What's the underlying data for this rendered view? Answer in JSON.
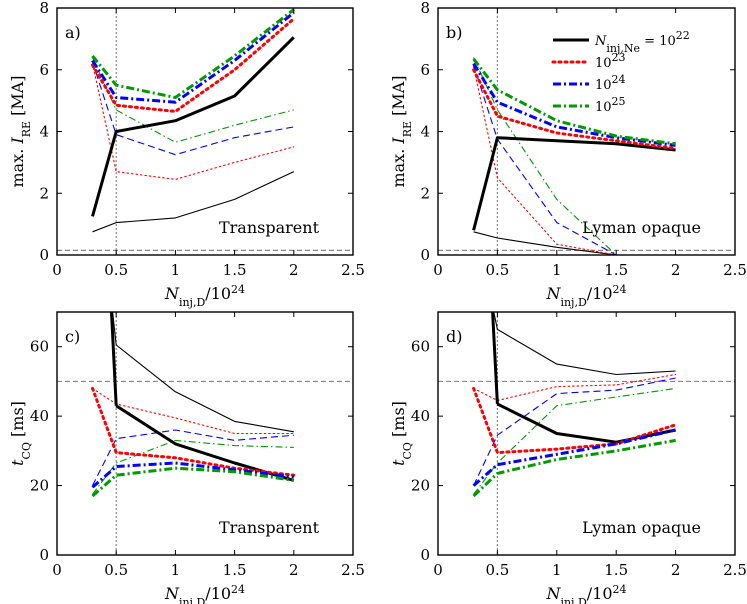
{
  "chart_data": [
    {
      "panel": "a)",
      "type": "line",
      "annotation": "Transparent",
      "xlabel": "N_inj,D/10^24",
      "ylabel": "max. I_RE [MA]",
      "xlim": [
        0,
        2.5
      ],
      "ylim": [
        0,
        8
      ],
      "xticks": [
        0,
        0.5,
        1,
        1.5,
        2,
        2.5
      ],
      "xtick_labels": [
        "0",
        "0.5",
        "1",
        "1.5",
        "2",
        "2.5"
      ],
      "yticks": [
        0,
        2,
        4,
        6,
        8
      ],
      "ytick_labels": [
        "0",
        "2",
        "4",
        "6",
        "8"
      ],
      "vline_x": 0.5,
      "hline_y": 0.15,
      "x": [
        0.3,
        0.5,
        1,
        1.5,
        2
      ],
      "series": [
        {
          "name": "10^22 thick",
          "color": "#000000",
          "style": "solid",
          "weight": "thick",
          "values": [
            1.25,
            4.0,
            4.35,
            5.15,
            7.05
          ]
        },
        {
          "name": "10^23 thick",
          "color": "#ff0000",
          "style": "dotted",
          "weight": "thick",
          "values": [
            6.15,
            4.85,
            4.65,
            6.0,
            7.65
          ]
        },
        {
          "name": "10^24 thick",
          "color": "#0000ff",
          "style": "dashdot",
          "weight": "thick",
          "values": [
            6.3,
            5.1,
            4.95,
            6.3,
            7.85
          ]
        },
        {
          "name": "10^25 thick",
          "color": "#009900",
          "style": "dashdot",
          "weight": "thick",
          "values": [
            6.45,
            5.5,
            5.1,
            6.45,
            7.95
          ]
        },
        {
          "name": "10^22 thin",
          "color": "#000000",
          "style": "solid",
          "weight": "thin",
          "values": [
            0.75,
            1.05,
            1.2,
            1.8,
            2.7
          ]
        },
        {
          "name": "10^23 thin",
          "color": "#ff0000",
          "style": "dotted",
          "weight": "thin",
          "values": [
            6.2,
            2.7,
            2.45,
            3.0,
            3.5
          ]
        },
        {
          "name": "10^24 thin",
          "color": "#0000ff",
          "style": "dashed",
          "weight": "thin",
          "values": [
            6.25,
            3.9,
            3.25,
            3.8,
            4.15
          ]
        },
        {
          "name": "10^25 thin",
          "color": "#009900",
          "style": "dashdot",
          "weight": "thin",
          "values": [
            6.4,
            4.7,
            3.65,
            4.2,
            4.7
          ]
        }
      ]
    },
    {
      "panel": "b)",
      "type": "line",
      "annotation": "Lyman opaque",
      "xlabel": "N_inj,D/10^24",
      "ylabel": "max. I_RE [MA]",
      "xlim": [
        0,
        2.5
      ],
      "ylim": [
        0,
        8
      ],
      "xticks": [
        0,
        0.5,
        1,
        1.5,
        2,
        2.5
      ],
      "xtick_labels": [
        "0",
        "0.5",
        "1",
        "1.5",
        "2",
        "2.5"
      ],
      "yticks": [
        0,
        2,
        4,
        6,
        8
      ],
      "ytick_labels": [
        "0",
        "2",
        "4",
        "6",
        "8"
      ],
      "vline_x": 0.5,
      "hline_y": 0.15,
      "x": [
        0.3,
        0.5,
        1,
        1.5,
        2
      ],
      "series": [
        {
          "name": "10^22 thick",
          "color": "#000000",
          "style": "solid",
          "weight": "thick",
          "values": [
            0.8,
            3.8,
            3.7,
            3.6,
            3.4
          ]
        },
        {
          "name": "10^23 thick",
          "color": "#ff0000",
          "style": "dotted",
          "weight": "thick",
          "values": [
            6.0,
            4.5,
            3.95,
            3.7,
            3.45
          ]
        },
        {
          "name": "10^24 thick",
          "color": "#0000ff",
          "style": "dashdot",
          "weight": "thick",
          "values": [
            6.2,
            4.95,
            4.15,
            3.8,
            3.55
          ]
        },
        {
          "name": "10^25 thick",
          "color": "#009900",
          "style": "dashdot",
          "weight": "thick",
          "values": [
            6.35,
            5.35,
            4.35,
            3.85,
            3.6
          ]
        },
        {
          "name": "10^22 thin",
          "color": "#000000",
          "style": "solid",
          "weight": "thin",
          "values": [
            0.75,
            0.55,
            0.25,
            0.0,
            0.0
          ]
        },
        {
          "name": "10^23 thin",
          "color": "#ff0000",
          "style": "dotted",
          "weight": "thin",
          "values": [
            6.1,
            2.5,
            0.35,
            0.0,
            0.0
          ]
        },
        {
          "name": "10^24 thin",
          "color": "#0000ff",
          "style": "dashed",
          "weight": "thin",
          "values": [
            6.15,
            3.75,
            1.05,
            0.0,
            0.0
          ]
        },
        {
          "name": "10^25 thin",
          "color": "#009900",
          "style": "dashdot",
          "weight": "thin",
          "values": [
            6.4,
            4.7,
            1.8,
            0.0,
            0.0
          ]
        }
      ],
      "legend": {
        "placement": "top-right",
        "entries": [
          {
            "label": "N_inj,Ne = 10^22",
            "color": "#000000",
            "style": "solid"
          },
          {
            "label": "10^23",
            "color": "#ff0000",
            "style": "dotted"
          },
          {
            "label": "10^24",
            "color": "#0000ff",
            "style": "dashdot"
          },
          {
            "label": "10^25",
            "color": "#009900",
            "style": "dashdot"
          }
        ]
      }
    },
    {
      "panel": "c)",
      "type": "line",
      "annotation": "Transparent",
      "xlabel": "N_inj,D/10^24",
      "ylabel": "t_CQ [ms]",
      "xlim": [
        0,
        2.5
      ],
      "ylim": [
        0,
        70
      ],
      "xticks": [
        0,
        0.5,
        1,
        1.5,
        2,
        2.5
      ],
      "xtick_labels": [
        "0",
        "0.5",
        "1",
        "1.5",
        "2",
        "2.5"
      ],
      "yticks": [
        0,
        20,
        40,
        60
      ],
      "ytick_labels": [
        "0",
        "20",
        "40",
        "60"
      ],
      "vline_x": 0.5,
      "hline_y": 50,
      "x": [
        0.3,
        0.5,
        1,
        1.5,
        2
      ],
      "series": [
        {
          "name": "10^22 thick",
          "color": "#000000",
          "style": "solid",
          "weight": "thick",
          "values": [
            null,
            43,
            32,
            26.5,
            21.5
          ]
        },
        {
          "name": "10^22 thick steep",
          "color": "#000000",
          "style": "solid",
          "weight": "thick",
          "x": [
            0.46,
            0.5
          ],
          "values": [
            70,
            43
          ]
        },
        {
          "name": "10^23 thick",
          "color": "#ff0000",
          "style": "dotted",
          "weight": "thick",
          "values": [
            48,
            29.5,
            28,
            25,
            23
          ]
        },
        {
          "name": "10^24 thick",
          "color": "#0000ff",
          "style": "dashdot",
          "weight": "thick",
          "values": [
            19.5,
            25.5,
            26.5,
            24.5,
            22.5
          ]
        },
        {
          "name": "10^25 thick",
          "color": "#009900",
          "style": "dashdot",
          "weight": "thick",
          "values": [
            17,
            23,
            25,
            24,
            21.5
          ]
        },
        {
          "name": "10^22 thin",
          "color": "#000000",
          "style": "solid",
          "weight": "thin",
          "values": [
            null,
            60.5,
            47,
            38.5,
            35.5
          ]
        },
        {
          "name": "10^22 thin steep",
          "color": "#000000",
          "style": "solid",
          "weight": "thin",
          "x": [
            0.47,
            0.5
          ],
          "values": [
            70,
            60.5
          ]
        },
        {
          "name": "10^23 thin",
          "color": "#ff0000",
          "style": "dotted",
          "weight": "thin",
          "values": [
            48,
            43.5,
            39.5,
            35,
            35
          ]
        },
        {
          "name": "10^24 thin",
          "color": "#0000ff",
          "style": "dashed",
          "weight": "thin",
          "values": [
            20,
            33.5,
            36,
            33,
            34.5
          ]
        },
        {
          "name": "10^25 thin",
          "color": "#009900",
          "style": "dashdot",
          "weight": "thin",
          "values": [
            17.5,
            26.5,
            33,
            31.5,
            31
          ]
        }
      ]
    },
    {
      "panel": "d)",
      "type": "line",
      "annotation": "Lyman opaque",
      "xlabel": "N_inj,D/10^24",
      "ylabel": "t_CQ [ms]",
      "xlim": [
        0,
        2.5
      ],
      "ylim": [
        0,
        70
      ],
      "xticks": [
        0,
        0.5,
        1,
        1.5,
        2,
        2.5
      ],
      "xtick_labels": [
        "0",
        "0.5",
        "1",
        "1.5",
        "2",
        "2.5"
      ],
      "yticks": [
        0,
        20,
        40,
        60
      ],
      "ytick_labels": [
        "0",
        "20",
        "40",
        "60"
      ],
      "vline_x": 0.5,
      "hline_y": 50,
      "x": [
        0.3,
        0.5,
        1,
        1.5,
        2
      ],
      "series": [
        {
          "name": "10^22 thick",
          "color": "#000000",
          "style": "solid",
          "weight": "thick",
          "values": [
            null,
            43.5,
            35,
            32.5,
            36
          ]
        },
        {
          "name": "10^22 thick steep",
          "color": "#000000",
          "style": "solid",
          "weight": "thick",
          "x": [
            0.46,
            0.5
          ],
          "values": [
            70,
            43.5
          ]
        },
        {
          "name": "10^23 thick",
          "color": "#ff0000",
          "style": "dotted",
          "weight": "thick",
          "values": [
            48,
            29.5,
            30.5,
            32,
            37.5
          ]
        },
        {
          "name": "10^24 thick",
          "color": "#0000ff",
          "style": "dashdot",
          "weight": "thick",
          "values": [
            20,
            26,
            29,
            32,
            36
          ]
        },
        {
          "name": "10^25 thick",
          "color": "#009900",
          "style": "dashdot",
          "weight": "thick",
          "values": [
            17,
            23.5,
            27.5,
            30,
            33
          ]
        },
        {
          "name": "10^22 thin",
          "color": "#000000",
          "style": "solid",
          "weight": "thin",
          "values": [
            null,
            65,
            55,
            52,
            53
          ]
        },
        {
          "name": "10^22 thin steep",
          "color": "#000000",
          "style": "solid",
          "weight": "thin",
          "x": [
            0.47,
            0.5
          ],
          "values": [
            70,
            65
          ]
        },
        {
          "name": "10^23 thin",
          "color": "#ff0000",
          "style": "dotted",
          "weight": "thin",
          "values": [
            48,
            44.5,
            48.5,
            49,
            52
          ]
        },
        {
          "name": "10^24 thin",
          "color": "#0000ff",
          "style": "dashed",
          "weight": "thin",
          "values": [
            20,
            34.5,
            46.5,
            47.5,
            51
          ]
        },
        {
          "name": "10^25 thin",
          "color": "#009900",
          "style": "dashdot",
          "weight": "thin",
          "values": [
            17.5,
            26.5,
            43,
            45.5,
            48
          ]
        }
      ]
    }
  ]
}
